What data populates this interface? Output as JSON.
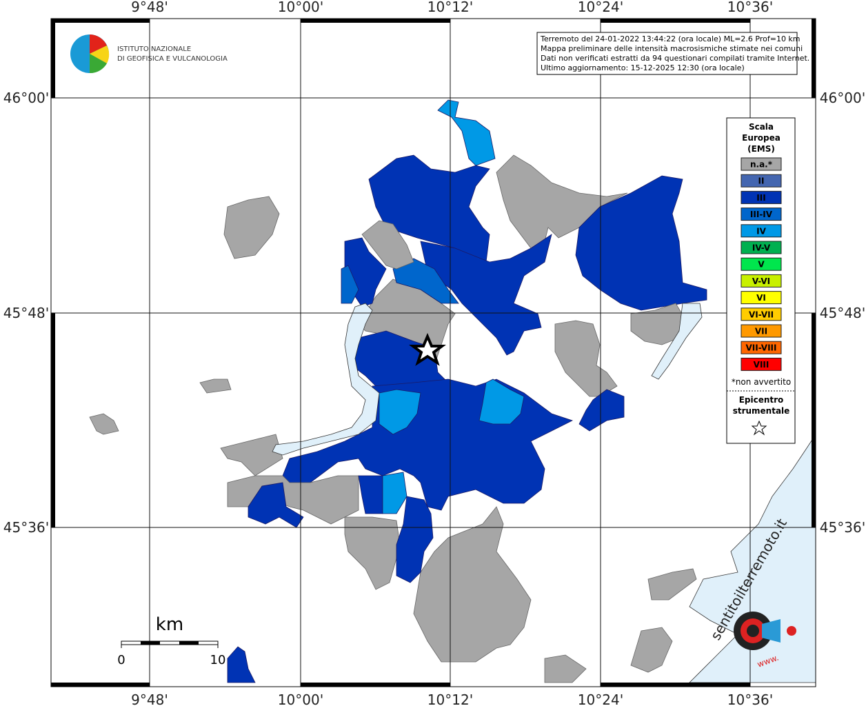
{
  "logo": {
    "line1": "ISTITUTO NAZIONALE",
    "line2": "DI GEOFISICA E VULCANOLOGIA"
  },
  "info": [
    "Terremoto del 24-01-2022 13:44:22 (ora locale) ML=2.6 Prof=10 km",
    "Mappa preliminare delle intensità macrosismiche stimate nei comuni",
    "Dati non verificati estratti da 94 questionari compilati tramite Internet.",
    "Ultimo aggiornamento: 15-12-2025 12:30 (ora locale)"
  ],
  "longitudes": [
    "9°48'",
    "10°00'",
    "10°12'",
    "10°24'",
    "10°36'"
  ],
  "latitudes": [
    "46°00'",
    "45°48'",
    "45°36'"
  ],
  "legend": {
    "title": [
      "Scala",
      "Europea",
      "(EMS)"
    ],
    "items": [
      {
        "label": "n.a.*",
        "color": "#a6a6a6"
      },
      {
        "label": "II",
        "color": "#4466b0"
      },
      {
        "label": "III",
        "color": "#0033b4"
      },
      {
        "label": "III-IV",
        "color": "#0066cc"
      },
      {
        "label": "IV",
        "color": "#0099e6"
      },
      {
        "label": "IV-V",
        "color": "#00b050"
      },
      {
        "label": "V",
        "color": "#00e64d"
      },
      {
        "label": "V-VI",
        "color": "#c8f000"
      },
      {
        "label": "VI",
        "color": "#ffff00"
      },
      {
        "label": "VI-VII",
        "color": "#ffcc00"
      },
      {
        "label": "VII",
        "color": "#ff9900"
      },
      {
        "label": "VII-VIII",
        "color": "#ff6600"
      },
      {
        "label": "VIII",
        "color": "#ff0000"
      }
    ],
    "note": "*non avvertito",
    "epicentre": [
      "Epicentro",
      "strumentale"
    ]
  },
  "scale": {
    "unit": "km",
    "start": "0",
    "end": "10"
  },
  "watermark": {
    "text": "sentitoilterremoto.it",
    "www": "www."
  }
}
